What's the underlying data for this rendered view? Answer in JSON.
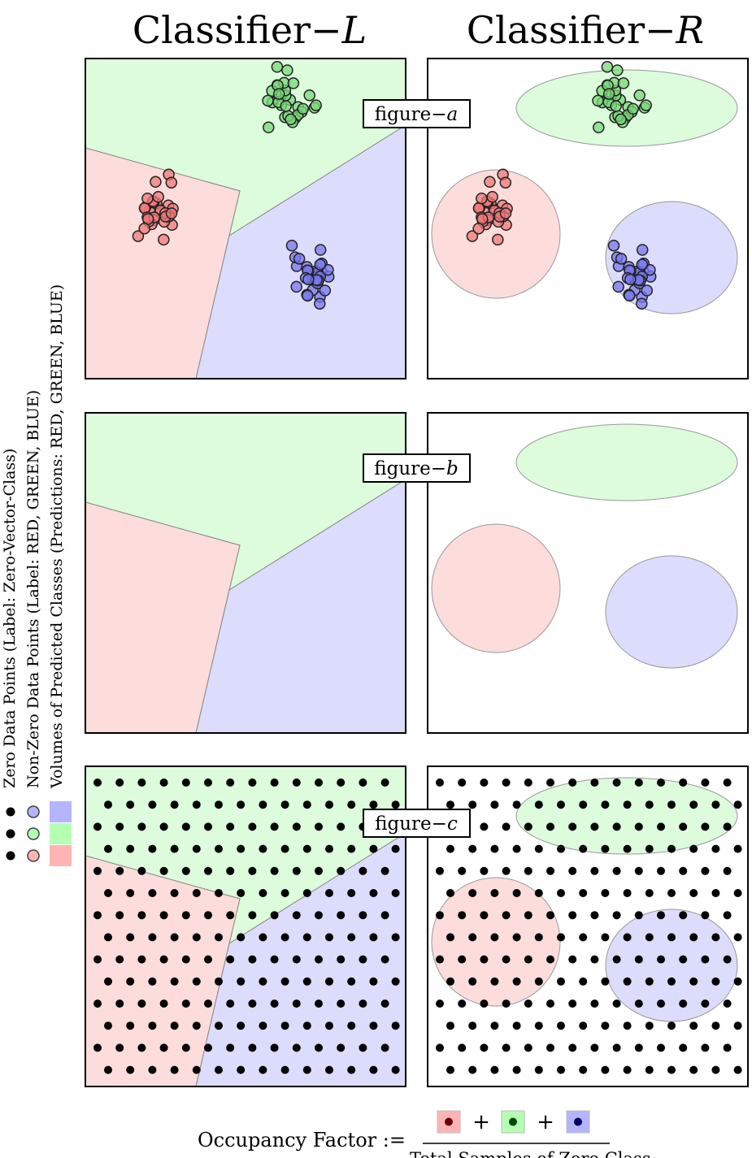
{
  "columns": [
    {
      "name": "Classifier",
      "dash": "−",
      "var": "L"
    },
    {
      "name": "Classifier",
      "dash": "−",
      "var": "R"
    }
  ],
  "rows": [
    {
      "label": "figure",
      "dash": "−",
      "var": "a",
      "content": "data-points"
    },
    {
      "label": "figure",
      "dash": "−",
      "var": "b",
      "content": "empty"
    },
    {
      "label": "figure",
      "dash": "−",
      "var": "c",
      "content": "zero-grid"
    }
  ],
  "legend": {
    "items": [
      "Zero Data Points (Label: Zero-Vector-Class)",
      "Non-Zero Data Points (Label: RED, GREEN, BLUE)",
      "Volumes of Predicted Classes (Predictions: RED, GREEN, BLUE)"
    ]
  },
  "formula": {
    "lhs": "Occupancy Factor :=",
    "plus": "+",
    "denominator": "Total Samples of Zero Class"
  },
  "colors": {
    "red_region": "#fddcdc",
    "green_region": "#dcfcdc",
    "blue_region": "#dcdcfc",
    "red_point": "#f07878",
    "green_point": "#78d878",
    "blue_point": "#7878f0",
    "legend_red": "#ffb4b4",
    "legend_green": "#b4ffb4",
    "legend_blue": "#b4b4ff",
    "black": "#000000"
  },
  "clusters": [
    {
      "class": "green",
      "count": 30,
      "center": [
        0.64,
        0.14
      ],
      "spread": 0.05
    },
    {
      "class": "red",
      "count": 30,
      "center": [
        0.22,
        0.47
      ],
      "spread": 0.05
    },
    {
      "class": "blue",
      "count": 30,
      "center": [
        0.7,
        0.68
      ],
      "spread": 0.05
    }
  ]
}
